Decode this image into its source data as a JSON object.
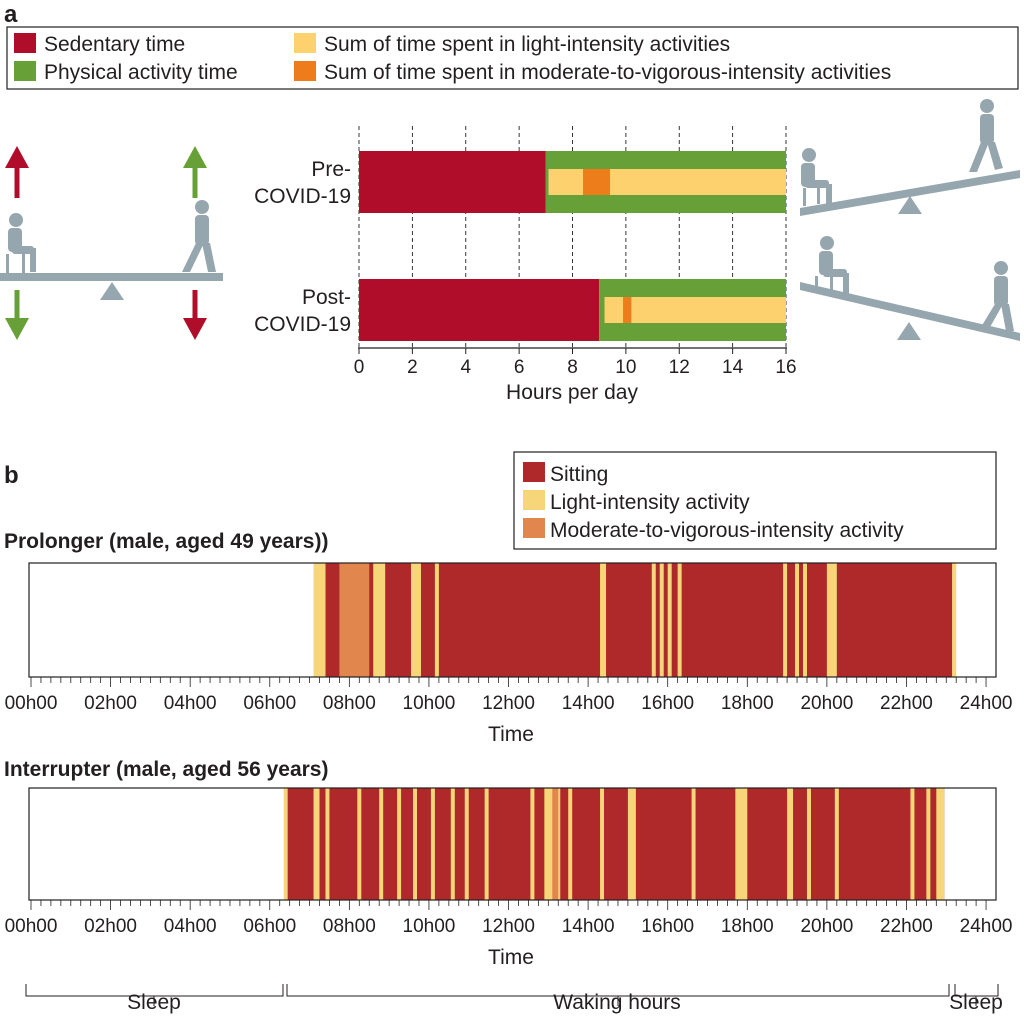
{
  "panel_a": {
    "label": "a",
    "legend": [
      {
        "key": "sedentary",
        "label": "Sedentary time",
        "color": "#b00d2b"
      },
      {
        "key": "physical",
        "label": "Physical activity time",
        "color": "#66a036"
      },
      {
        "key": "light",
        "label": "Sum of time spent in light-intensity activities",
        "color": "#fdd26e"
      },
      {
        "key": "mvpa",
        "label": "Sum of time spent in moderate-to-vigorous-intensity activities",
        "color": "#ed7d1b"
      }
    ],
    "seesaw_colors": {
      "arrow_up_red": "#b00d2b",
      "arrow_up_green": "#66a036",
      "figure": "#96a6ae"
    }
  },
  "panel_b": {
    "label": "b",
    "legend": [
      {
        "key": "sitting",
        "label": "Sitting",
        "color": "#b0292a"
      },
      {
        "key": "light",
        "label": "Light-intensity activity",
        "color": "#f7d679"
      },
      {
        "key": "mvpa",
        "label": "Moderate-to-vigorous-intensity activity",
        "color": "#e1864c"
      }
    ],
    "period_labels": {
      "sleep_left": "Sleep",
      "waking": "Waking hours",
      "sleep_right": "Sleep"
    }
  },
  "chart_data": [
    {
      "type": "bar",
      "subtype": "stacked-horizontal",
      "title": "",
      "xlabel": "Hours per day",
      "ylabel": "",
      "xlim": [
        0,
        16
      ],
      "xticks": [
        0,
        2,
        4,
        6,
        8,
        10,
        12,
        14,
        16
      ],
      "categories": [
        "Pre-COVID-19",
        "Post-COVID-19"
      ],
      "category_lines": [
        [
          "Pre-",
          "COVID-19"
        ],
        [
          "Post-",
          "COVID-19"
        ]
      ],
      "series": [
        {
          "name": "Sedentary time",
          "values": [
            7,
            9
          ]
        },
        {
          "name": "Physical activity time",
          "values": [
            9,
            7
          ]
        }
      ],
      "inner_series": [
        {
          "name": "Sum of time spent in light-intensity activities",
          "segments": [
            [
              [
                7.1,
                8.4
              ],
              [
                9.4,
                16
              ]
            ],
            [
              [
                9.2,
                9.9
              ],
              [
                10.2,
                16
              ]
            ]
          ]
        },
        {
          "name": "Sum of time spent in moderate-to-vigorous-intensity activities",
          "segments": [
            [
              [
                8.4,
                9.4
              ]
            ],
            [
              [
                9.9,
                10.2
              ]
            ]
          ]
        }
      ]
    },
    {
      "type": "heatmap",
      "subtitle": "Prolonger (male, aged 49 years))",
      "xlabel": "Time",
      "xlim": [
        0,
        24.25
      ],
      "xticks": [
        "00h00",
        "02h00",
        "04h00",
        "06h00",
        "08h00",
        "10h00",
        "12h00",
        "14h00",
        "16h00",
        "18h00",
        "20h00",
        "22h00",
        "24h00"
      ],
      "sitting_span": [
        7.4,
        23.15
      ],
      "light": [
        [
          7.1,
          7.4
        ],
        [
          8.6,
          8.9
        ],
        [
          9.55,
          9.8
        ],
        [
          10.15,
          10.25
        ],
        [
          14.3,
          14.45
        ],
        [
          15.6,
          15.7
        ],
        [
          15.8,
          15.9
        ],
        [
          16.0,
          16.1
        ],
        [
          16.25,
          16.35
        ],
        [
          18.9,
          19.0
        ],
        [
          19.2,
          19.3
        ],
        [
          19.4,
          19.5
        ],
        [
          20.0,
          20.25
        ],
        [
          23.15,
          23.25
        ]
      ],
      "mvpa": [
        [
          7.75,
          8.5
        ]
      ]
    },
    {
      "type": "heatmap",
      "subtitle": "Interrupter (male, aged 56 years)",
      "xlabel": "Time",
      "xlim": [
        0,
        24.25
      ],
      "xticks": [
        "00h00",
        "02h00",
        "04h00",
        "06h00",
        "08h00",
        "10h00",
        "12h00",
        "14h00",
        "16h00",
        "18h00",
        "20h00",
        "22h00",
        "24h00"
      ],
      "sitting_span": [
        6.4,
        22.95
      ],
      "light": [
        [
          6.35,
          6.45
        ],
        [
          7.1,
          7.25
        ],
        [
          7.4,
          7.5
        ],
        [
          8.2,
          8.3
        ],
        [
          8.75,
          8.85
        ],
        [
          9.2,
          9.3
        ],
        [
          9.6,
          9.7
        ],
        [
          10.05,
          10.15
        ],
        [
          10.55,
          10.65
        ],
        [
          10.9,
          11.0
        ],
        [
          11.4,
          11.5
        ],
        [
          12.55,
          12.65
        ],
        [
          12.9,
          13.3
        ],
        [
          13.5,
          13.6
        ],
        [
          14.3,
          14.4
        ],
        [
          15.0,
          15.2
        ],
        [
          16.6,
          16.7
        ],
        [
          17.7,
          18.0
        ],
        [
          19.0,
          19.15
        ],
        [
          19.5,
          19.6
        ],
        [
          20.2,
          20.3
        ],
        [
          22.1,
          22.2
        ],
        [
          22.5,
          22.6
        ],
        [
          22.75,
          22.95
        ]
      ],
      "mvpa": [
        [
          13.1,
          13.25
        ]
      ]
    }
  ]
}
